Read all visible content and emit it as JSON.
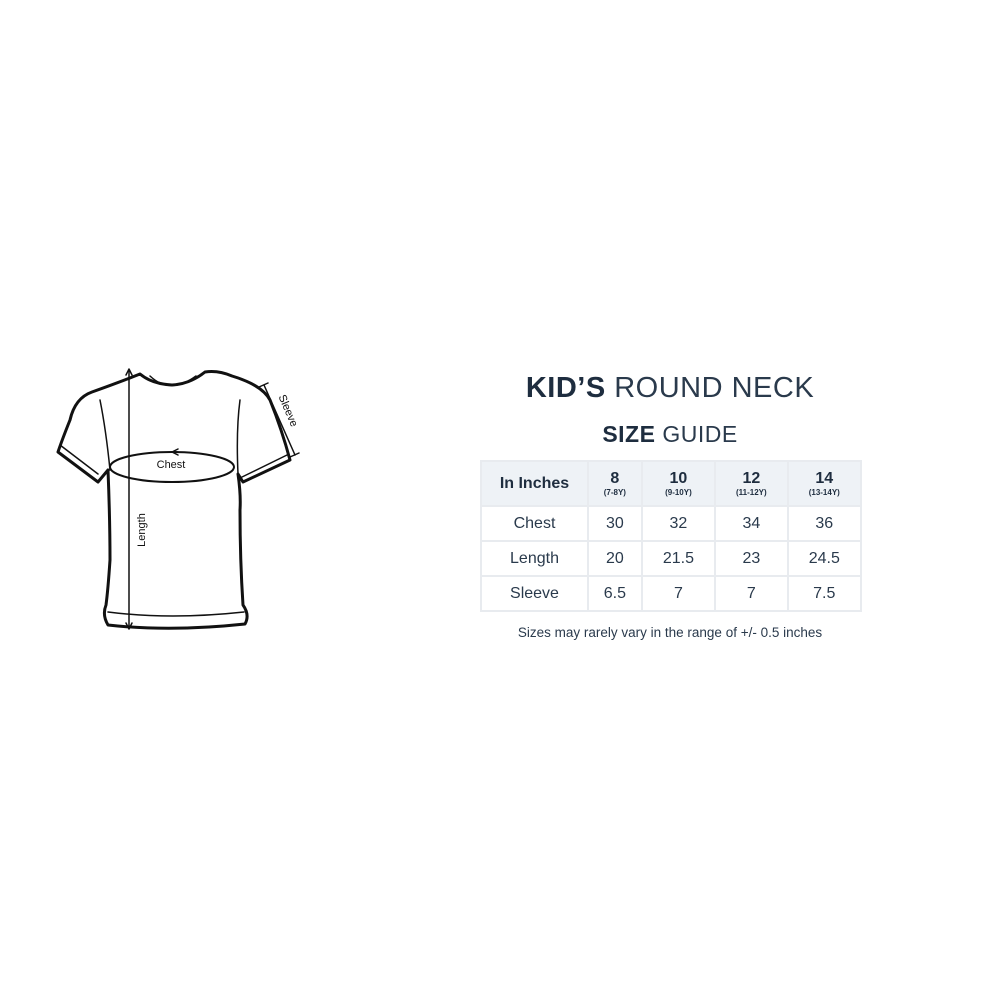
{
  "diagram": {
    "labels": {
      "chest": "Chest",
      "length": "Length",
      "sleeve": "Sleeve"
    }
  },
  "title": {
    "bold": "KID’S",
    "light": "ROUND NECK"
  },
  "subtitle": {
    "bold": "SIZE",
    "light": "GUIDE"
  },
  "table": {
    "header": "In Inches",
    "sizes": [
      {
        "size": "8",
        "age": "(7-8Y)"
      },
      {
        "size": "10",
        "age": "(9-10Y)"
      },
      {
        "size": "12",
        "age": "(11-12Y)"
      },
      {
        "size": "14",
        "age": "(13-14Y)"
      }
    ],
    "rows": [
      {
        "label": "Chest",
        "values": [
          "30",
          "32",
          "34",
          "36"
        ]
      },
      {
        "label": "Length",
        "values": [
          "20",
          "21.5",
          "23",
          "24.5"
        ]
      },
      {
        "label": "Sleeve",
        "values": [
          "6.5",
          "7",
          "7",
          "7.5"
        ]
      }
    ]
  },
  "note": "Sizes may rarely vary in the range of +/- 0.5 inches"
}
